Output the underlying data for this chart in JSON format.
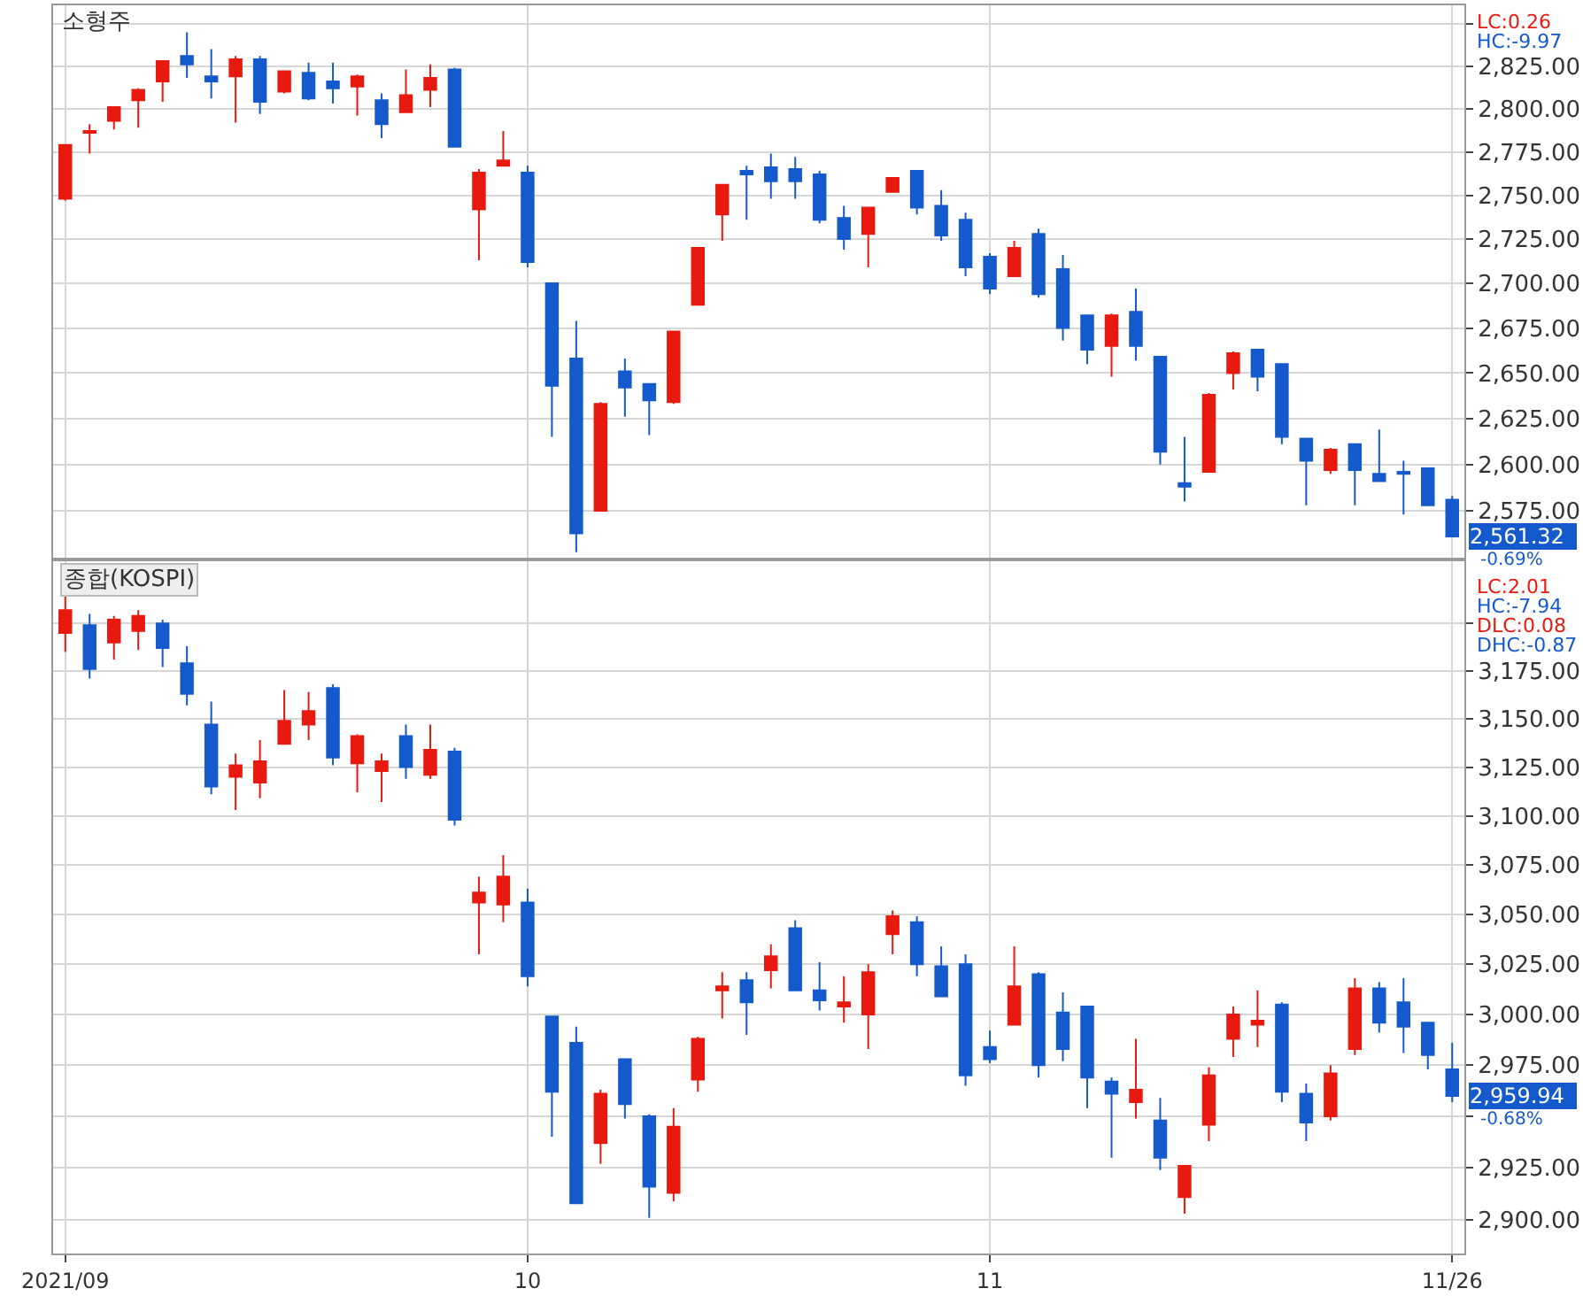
{
  "chart_data": [
    {
      "type": "candlestick",
      "title": "소형주",
      "log": true,
      "grid": true,
      "tick_labels": "y",
      "categories": [
        null,
        null,
        null,
        null,
        null,
        null,
        null,
        null,
        null,
        null,
        null,
        null,
        null,
        null,
        null,
        null,
        null,
        null,
        null,
        null,
        null,
        null,
        null,
        null,
        null,
        null,
        null,
        null,
        null,
        null,
        null,
        null,
        null,
        null,
        null,
        null,
        null,
        null,
        null,
        null,
        null,
        null,
        null,
        null,
        null,
        null,
        null,
        null,
        null,
        null,
        null,
        null,
        null,
        null,
        null,
        null,
        null,
        null
      ],
      "ohlc": [
        [
          2748,
          2779,
          2747,
          2779
        ],
        [
          2786,
          2791,
          2774,
          2787
        ],
        [
          2793,
          2801,
          2788,
          2801
        ],
        [
          2805,
          2812,
          2789,
          2811
        ],
        [
          2816,
          2828,
          2804,
          2828
        ],
        [
          2831,
          2845,
          2818,
          2826
        ],
        [
          2819,
          2835,
          2806,
          2816
        ],
        [
          2819,
          2831,
          2792,
          2829
        ],
        [
          2829,
          2831,
          2797,
          2804
        ],
        [
          2810,
          2822,
          2809,
          2822
        ],
        [
          2821,
          2827,
          2805,
          2806
        ],
        [
          2816,
          2827,
          2803,
          2812
        ],
        [
          2813,
          2820,
          2796,
          2819
        ],
        [
          2805,
          2809,
          2783,
          2791
        ],
        [
          2798,
          2823,
          2798,
          2808
        ],
        [
          2811,
          2826,
          2801,
          2818
        ],
        [
          2823,
          2824,
          2778,
          2778
        ],
        [
          2742,
          2765,
          2713,
          2763
        ],
        [
          2767,
          2787,
          2767,
          2770
        ],
        [
          2763,
          2767,
          2709,
          2712
        ],
        [
          2700,
          2700,
          2615,
          2643
        ],
        [
          2658,
          2679,
          2553,
          2563
        ],
        [
          2575,
          2634,
          2575,
          2633
        ],
        [
          2651,
          2658,
          2626,
          2642
        ],
        [
          2644,
          2644,
          2616,
          2635
        ],
        [
          2634,
          2673,
          2633,
          2673
        ],
        [
          2688,
          2720,
          2688,
          2720
        ],
        [
          2739,
          2756,
          2724,
          2756
        ],
        [
          2764,
          2767,
          2736,
          2762
        ],
        [
          2766,
          2774,
          2748,
          2758
        ],
        [
          2765,
          2772,
          2748,
          2758
        ],
        [
          2762,
          2764,
          2734,
          2736
        ],
        [
          2737,
          2744,
          2719,
          2725
        ],
        [
          2728,
          2743,
          2709,
          2743
        ],
        [
          2752,
          2760,
          2752,
          2760
        ],
        [
          2764,
          2764,
          2739,
          2743
        ],
        [
          2744,
          2753,
          2724,
          2727
        ],
        [
          2736,
          2740,
          2704,
          2709
        ],
        [
          2715,
          2717,
          2694,
          2697
        ],
        [
          2704,
          2724,
          2704,
          2720
        ],
        [
          2728,
          2731,
          2692,
          2694
        ],
        [
          2708,
          2716,
          2668,
          2675
        ],
        [
          2682,
          2682,
          2655,
          2663
        ],
        [
          2665,
          2683,
          2648,
          2682
        ],
        [
          2684,
          2697,
          2657,
          2665
        ],
        [
          2659,
          2659,
          2600,
          2607
        ],
        [
          2590,
          2615,
          2580,
          2588
        ],
        [
          2596,
          2639,
          2596,
          2638
        ],
        [
          2650,
          2662,
          2641,
          2661
        ],
        [
          2663,
          2663,
          2640,
          2648
        ],
        [
          2655,
          2655,
          2611,
          2615
        ],
        [
          2614,
          2614,
          2578,
          2602
        ],
        [
          2597,
          2609,
          2595,
          2608
        ],
        [
          2611,
          2611,
          2578,
          2597
        ],
        [
          2595,
          2619,
          2591,
          2591
        ],
        [
          2596,
          2602,
          2573,
          2595
        ],
        [
          2598,
          2598,
          2578,
          2578
        ],
        [
          2581,
          2583,
          2561,
          2561.32
        ]
      ],
      "colors": [
        "#e8190e",
        "#e8190e",
        "#e8190e",
        "#e8190e",
        "#e8190e",
        "#145acc",
        "#145acc",
        "#e8190e",
        "#145acc",
        "#e8190e",
        "#145acc",
        "#145acc",
        "#e8190e",
        "#145acc",
        "#e8190e",
        "#e8190e",
        "#145acc",
        "#e8190e",
        "#e8190e",
        "#145acc",
        "#145acc",
        "#145acc",
        "#e8190e",
        "#145acc",
        "#145acc",
        "#e8190e",
        "#e8190e",
        "#e8190e",
        "#145acc",
        "#145acc",
        "#145acc",
        "#145acc",
        "#145acc",
        "#e8190e",
        "#e8190e",
        "#145acc",
        "#145acc",
        "#145acc",
        "#145acc",
        "#e8190e",
        "#145acc",
        "#145acc",
        "#145acc",
        "#e8190e",
        "#145acc",
        "#145acc",
        "#145acc",
        "#e8190e",
        "#e8190e",
        "#145acc",
        "#145acc",
        "#145acc",
        "#e8190e",
        "#145acc",
        "#145acc",
        "#145acc",
        "#145acc",
        "#145acc"
      ],
      "ylim": [
        2550,
        2861
      ],
      "yticks": [
        {
          "value": 2575,
          "label": "2,575.00"
        },
        {
          "value": 2600,
          "label": "2,600.00"
        },
        {
          "value": 2625,
          "label": "2,625.00"
        },
        {
          "value": 2650,
          "label": "2,650.00"
        },
        {
          "value": 2675,
          "label": "2,675.00"
        },
        {
          "value": 2700,
          "label": "2,700.00"
        },
        {
          "value": 2725,
          "label": "2,725.00"
        },
        {
          "value": 2750,
          "label": "2,750.00"
        },
        {
          "value": 2775,
          "label": "2,775.00"
        },
        {
          "value": 2800,
          "label": "2,800.00"
        },
        {
          "value": 2825,
          "label": "2,825.00"
        },
        {
          "value": 2850,
          "label": null
        }
      ],
      "annotations": [
        "LC:0.26",
        "HC:-9.97",
        "2,561.32",
        "-0.69%"
      ]
    },
    {
      "type": "candlestick",
      "title": "종합(KOSPI)",
      "log": true,
      "grid": true,
      "categories": [
        "2021/09",
        null,
        null,
        null,
        null,
        null,
        null,
        null,
        null,
        null,
        null,
        null,
        null,
        null,
        null,
        null,
        null,
        null,
        null,
        "10",
        null,
        null,
        null,
        null,
        null,
        null,
        null,
        null,
        null,
        null,
        null,
        null,
        null,
        null,
        null,
        null,
        null,
        null,
        "11",
        null,
        null,
        null,
        null,
        null,
        null,
        null,
        null,
        null,
        null,
        null,
        null,
        null,
        null,
        null,
        null,
        null,
        null,
        "11/26"
      ],
      "ohlc": [
        [
          3195,
          3216,
          3185,
          3207
        ],
        [
          3199,
          3205,
          3171,
          3176
        ],
        [
          3190,
          3204,
          3181,
          3202
        ],
        [
          3196,
          3207,
          3186,
          3204
        ],
        [
          3200,
          3202,
          3177,
          3187
        ],
        [
          3179,
          3188,
          3157,
          3163
        ],
        [
          3147,
          3159,
          3111,
          3115
        ],
        [
          3120,
          3132,
          3103,
          3126
        ],
        [
          3117,
          3139,
          3109,
          3128
        ],
        [
          3137,
          3165,
          3137,
          3149
        ],
        [
          3147,
          3164,
          3139,
          3154
        ],
        [
          3166,
          3168,
          3126,
          3130
        ],
        [
          3127,
          3142,
          3112,
          3141
        ],
        [
          3123,
          3132,
          3107,
          3128
        ],
        [
          3141,
          3147,
          3119,
          3125
        ],
        [
          3121,
          3147,
          3119,
          3134
        ],
        [
          3133,
          3135,
          3095,
          3098
        ],
        [
          3056,
          3069,
          3030,
          3061
        ],
        [
          3055,
          3080,
          3046,
          3069
        ],
        [
          3056,
          3063,
          3014,
          3019
        ],
        [
          2999,
          2999,
          2940,
          2962
        ],
        [
          2986,
          2994,
          2908,
          2908
        ],
        [
          2937,
          2963,
          2927,
          2961
        ],
        [
          2978,
          2978,
          2949,
          2956
        ],
        [
          2950,
          2951,
          2901,
          2916
        ],
        [
          2913,
          2954,
          2909,
          2945
        ],
        [
          2968,
          2989,
          2962,
          2988
        ],
        [
          3012,
          3021,
          2998,
          3014
        ],
        [
          3017,
          3021,
          2990,
          3006
        ],
        [
          3022,
          3035,
          3013,
          3029
        ],
        [
          3043,
          3047,
          3012,
          3012
        ],
        [
          3012,
          3026,
          3002,
          3007
        ],
        [
          3004,
          3019,
          2996,
          3006
        ],
        [
          3000,
          3025,
          2983,
          3021
        ],
        [
          3040,
          3052,
          3030,
          3049
        ],
        [
          3046,
          3049,
          3019,
          3025
        ],
        [
          3024,
          3034,
          3009,
          3009
        ],
        [
          3025,
          3030,
          2965,
          2970
        ],
        [
          2984,
          2992,
          2976,
          2978
        ],
        [
          2995,
          3034,
          2995,
          3014
        ],
        [
          3020,
          3021,
          2969,
          2975
        ],
        [
          3001,
          3011,
          2977,
          2983
        ],
        [
          3004,
          3004,
          2954,
          2969
        ],
        [
          2967,
          2969,
          2930,
          2961
        ],
        [
          2957,
          2988,
          2949,
          2963
        ],
        [
          2948,
          2959,
          2924,
          2930
        ],
        [
          2911,
          2926,
          2903,
          2926
        ],
        [
          2946,
          2974,
          2938,
          2970
        ],
        [
          2988,
          3004,
          2979,
          3000
        ],
        [
          2995,
          3012,
          2984,
          2997
        ],
        [
          3005,
          3006,
          2957,
          2962
        ],
        [
          2961,
          2966,
          2938,
          2947
        ],
        [
          2950,
          2975,
          2948,
          2971
        ],
        [
          2983,
          3018,
          2980,
          3013
        ],
        [
          3013,
          3016,
          2991,
          2996
        ],
        [
          3006,
          3018,
          2981,
          2994
        ],
        [
          2996,
          2996,
          2973,
          2980
        ],
        [
          2973,
          2986,
          2957,
          2959.94
        ]
      ],
      "colors": [
        "#e8190e",
        "#145acc",
        "#e8190e",
        "#e8190e",
        "#145acc",
        "#145acc",
        "#145acc",
        "#e8190e",
        "#e8190e",
        "#e8190e",
        "#e8190e",
        "#145acc",
        "#e8190e",
        "#e8190e",
        "#145acc",
        "#e8190e",
        "#145acc",
        "#e8190e",
        "#e8190e",
        "#145acc",
        "#145acc",
        "#145acc",
        "#e8190e",
        "#145acc",
        "#145acc",
        "#e8190e",
        "#e8190e",
        "#e8190e",
        "#145acc",
        "#e8190e",
        "#145acc",
        "#145acc",
        "#e8190e",
        "#e8190e",
        "#e8190e",
        "#145acc",
        "#145acc",
        "#145acc",
        "#145acc",
        "#e8190e",
        "#145acc",
        "#145acc",
        "#145acc",
        "#145acc",
        "#e8190e",
        "#145acc",
        "#e8190e",
        "#e8190e",
        "#e8190e",
        "#e8190e",
        "#145acc",
        "#145acc",
        "#e8190e",
        "#e8190e",
        "#145acc",
        "#145acc",
        "#145acc",
        "#145acc"
      ],
      "ylim": [
        2884,
        3233
      ],
      "yticks": [
        {
          "value": 2900,
          "label": "2,900.00"
        },
        {
          "value": 2925,
          "label": "2,925.00"
        },
        {
          "value": 2950,
          "label": null
        },
        {
          "value": 2975,
          "label": "2,975.00"
        },
        {
          "value": 3000,
          "label": "3,000.00"
        },
        {
          "value": 3025,
          "label": "3,025.00"
        },
        {
          "value": 3050,
          "label": "3,050.00"
        },
        {
          "value": 3075,
          "label": "3,075.00"
        },
        {
          "value": 3100,
          "label": "3,100.00"
        },
        {
          "value": 3125,
          "label": "3,125.00"
        },
        {
          "value": 3150,
          "label": "3,150.00"
        },
        {
          "value": 3175,
          "label": "3,175.00"
        },
        {
          "value": 3200,
          "label": null
        }
      ],
      "annotations": [
        "LC:2.01",
        "HC:-7.94",
        "DLC:0.08",
        "DHC:-0.87",
        "2,959.94",
        "-0.68%"
      ]
    }
  ]
}
